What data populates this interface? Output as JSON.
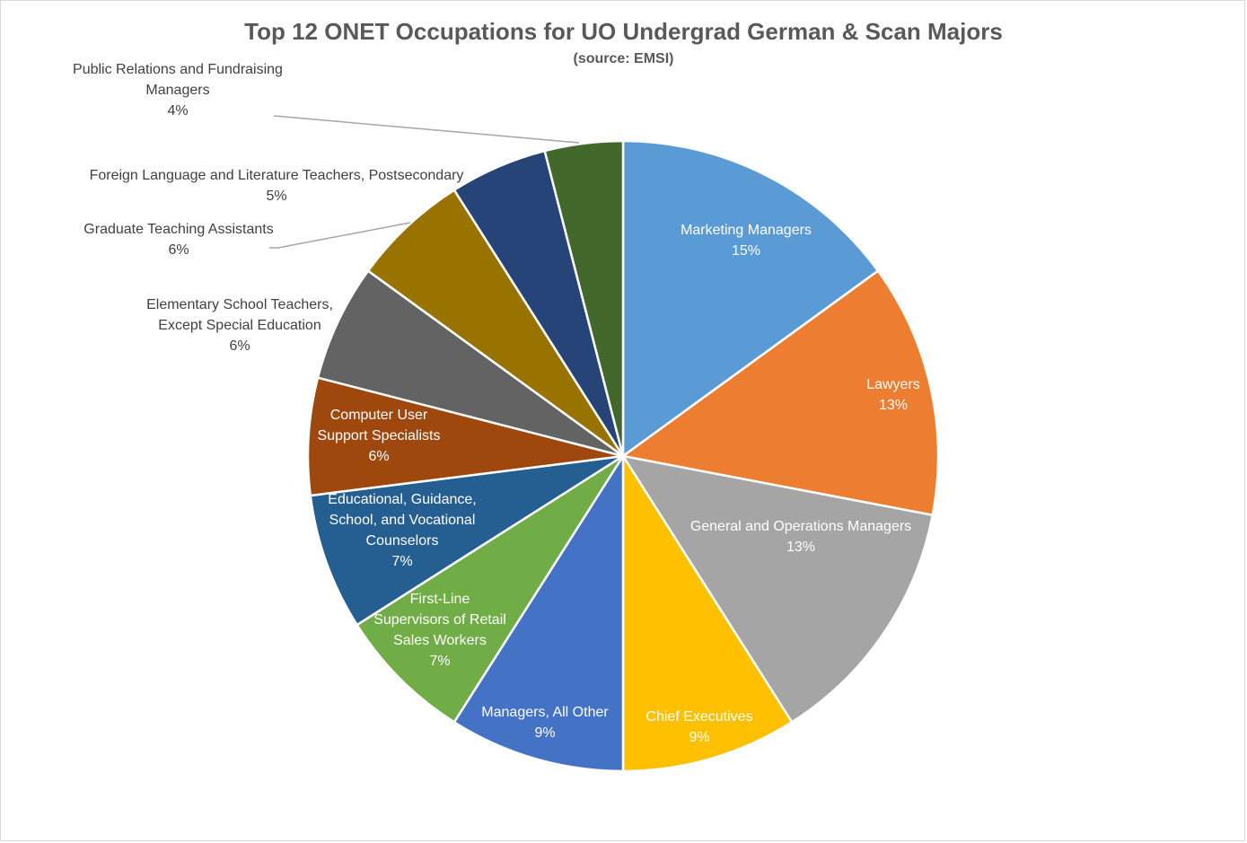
{
  "chart_data": {
    "type": "pie",
    "title": "Top 12 ONET Occupations for UO Undergrad German & Scan Majors",
    "subtitle": "(source: EMSI)",
    "start_angle_deg": 0,
    "direction": "clockwise",
    "slices": [
      {
        "label": "Marketing Managers",
        "value": 15,
        "pct_label": "15%",
        "color": "#5b9bd5",
        "text_color": "#ffffff",
        "outside": false
      },
      {
        "label": "Lawyers",
        "value": 13,
        "pct_label": "13%",
        "color": "#ed7d31",
        "text_color": "#ffffff",
        "outside": false
      },
      {
        "label": "General and Operations Managers",
        "value": 13,
        "pct_label": "13%",
        "color": "#a5a5a5",
        "text_color": "#ffffff",
        "outside": false
      },
      {
        "label": "Chief Executives",
        "value": 9,
        "pct_label": "9%",
        "color": "#ffc000",
        "text_color": "#ffffff",
        "outside": false
      },
      {
        "label": "Managers, All Other",
        "value": 9,
        "pct_label": "9%",
        "color": "#4472c4",
        "text_color": "#ffffff",
        "outside": false
      },
      {
        "label": "First-Line Supervisors of Retail Sales Workers",
        "value": 7,
        "pct_label": "7%",
        "color": "#70ad47",
        "text_color": "#ffffff",
        "outside": false
      },
      {
        "label": "Educational, Guidance, School, and Vocational Counselors",
        "value": 7,
        "pct_label": "7%",
        "color": "#255e91",
        "text_color": "#ffffff",
        "outside": false
      },
      {
        "label": "Computer User Support Specialists",
        "value": 6,
        "pct_label": "6%",
        "color": "#9e480e",
        "text_color": "#ffffff",
        "outside": false
      },
      {
        "label": "Elementary School Teachers, Except Special Education",
        "value": 6,
        "pct_label": "6%",
        "color": "#636363",
        "text_color": "#404040",
        "outside": true
      },
      {
        "label": "Graduate Teaching Assistants",
        "value": 6,
        "pct_label": "6%",
        "color": "#997300",
        "text_color": "#404040",
        "outside": true
      },
      {
        "label": "Foreign Language and Literature Teachers, Postsecondary",
        "value": 5,
        "pct_label": "5%",
        "color": "#264478",
        "text_color": "#404040",
        "outside": true
      },
      {
        "label": "Public Relations and Fundraising Managers",
        "value": 4,
        "pct_label": "4%",
        "color": "#43682b",
        "text_color": "#404040",
        "outside": true
      }
    ]
  }
}
